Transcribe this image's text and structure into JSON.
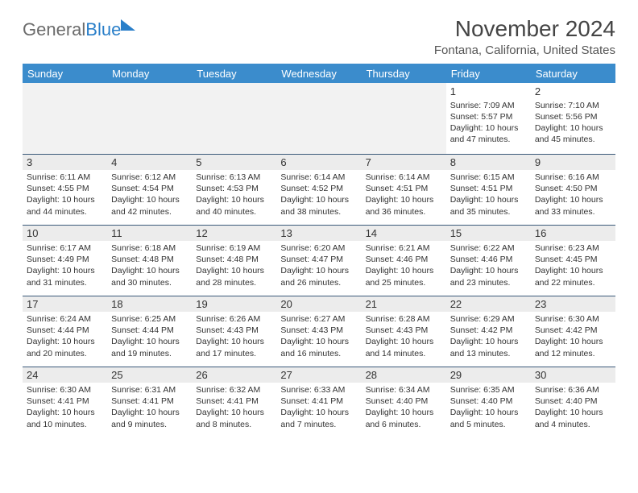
{
  "logo": {
    "part1": "General",
    "part2": "Blue"
  },
  "title": "November 2024",
  "location": "Fontana, California, United States",
  "headers": [
    "Sunday",
    "Monday",
    "Tuesday",
    "Wednesday",
    "Thursday",
    "Friday",
    "Saturday"
  ],
  "colors": {
    "header_bg": "#3b8ccc",
    "header_text": "#ffffff",
    "row_border": "#3b5a7a",
    "daynum_bg": "#ececec",
    "logo_gray": "#6b6b6b",
    "logo_blue": "#2a7fc9"
  },
  "weeks": [
    [
      {
        "day": "",
        "lines": [
          "",
          "",
          "",
          ""
        ]
      },
      {
        "day": "",
        "lines": [
          "",
          "",
          "",
          ""
        ]
      },
      {
        "day": "",
        "lines": [
          "",
          "",
          "",
          ""
        ]
      },
      {
        "day": "",
        "lines": [
          "",
          "",
          "",
          ""
        ]
      },
      {
        "day": "",
        "lines": [
          "",
          "",
          "",
          ""
        ]
      },
      {
        "day": "1",
        "lines": [
          "Sunrise: 7:09 AM",
          "Sunset: 5:57 PM",
          "Daylight: 10 hours",
          "and 47 minutes."
        ]
      },
      {
        "day": "2",
        "lines": [
          "Sunrise: 7:10 AM",
          "Sunset: 5:56 PM",
          "Daylight: 10 hours",
          "and 45 minutes."
        ]
      }
    ],
    [
      {
        "day": "3",
        "lines": [
          "Sunrise: 6:11 AM",
          "Sunset: 4:55 PM",
          "Daylight: 10 hours",
          "and 44 minutes."
        ]
      },
      {
        "day": "4",
        "lines": [
          "Sunrise: 6:12 AM",
          "Sunset: 4:54 PM",
          "Daylight: 10 hours",
          "and 42 minutes."
        ]
      },
      {
        "day": "5",
        "lines": [
          "Sunrise: 6:13 AM",
          "Sunset: 4:53 PM",
          "Daylight: 10 hours",
          "and 40 minutes."
        ]
      },
      {
        "day": "6",
        "lines": [
          "Sunrise: 6:14 AM",
          "Sunset: 4:52 PM",
          "Daylight: 10 hours",
          "and 38 minutes."
        ]
      },
      {
        "day": "7",
        "lines": [
          "Sunrise: 6:14 AM",
          "Sunset: 4:51 PM",
          "Daylight: 10 hours",
          "and 36 minutes."
        ]
      },
      {
        "day": "8",
        "lines": [
          "Sunrise: 6:15 AM",
          "Sunset: 4:51 PM",
          "Daylight: 10 hours",
          "and 35 minutes."
        ]
      },
      {
        "day": "9",
        "lines": [
          "Sunrise: 6:16 AM",
          "Sunset: 4:50 PM",
          "Daylight: 10 hours",
          "and 33 minutes."
        ]
      }
    ],
    [
      {
        "day": "10",
        "lines": [
          "Sunrise: 6:17 AM",
          "Sunset: 4:49 PM",
          "Daylight: 10 hours",
          "and 31 minutes."
        ]
      },
      {
        "day": "11",
        "lines": [
          "Sunrise: 6:18 AM",
          "Sunset: 4:48 PM",
          "Daylight: 10 hours",
          "and 30 minutes."
        ]
      },
      {
        "day": "12",
        "lines": [
          "Sunrise: 6:19 AM",
          "Sunset: 4:48 PM",
          "Daylight: 10 hours",
          "and 28 minutes."
        ]
      },
      {
        "day": "13",
        "lines": [
          "Sunrise: 6:20 AM",
          "Sunset: 4:47 PM",
          "Daylight: 10 hours",
          "and 26 minutes."
        ]
      },
      {
        "day": "14",
        "lines": [
          "Sunrise: 6:21 AM",
          "Sunset: 4:46 PM",
          "Daylight: 10 hours",
          "and 25 minutes."
        ]
      },
      {
        "day": "15",
        "lines": [
          "Sunrise: 6:22 AM",
          "Sunset: 4:46 PM",
          "Daylight: 10 hours",
          "and 23 minutes."
        ]
      },
      {
        "day": "16",
        "lines": [
          "Sunrise: 6:23 AM",
          "Sunset: 4:45 PM",
          "Daylight: 10 hours",
          "and 22 minutes."
        ]
      }
    ],
    [
      {
        "day": "17",
        "lines": [
          "Sunrise: 6:24 AM",
          "Sunset: 4:44 PM",
          "Daylight: 10 hours",
          "and 20 minutes."
        ]
      },
      {
        "day": "18",
        "lines": [
          "Sunrise: 6:25 AM",
          "Sunset: 4:44 PM",
          "Daylight: 10 hours",
          "and 19 minutes."
        ]
      },
      {
        "day": "19",
        "lines": [
          "Sunrise: 6:26 AM",
          "Sunset: 4:43 PM",
          "Daylight: 10 hours",
          "and 17 minutes."
        ]
      },
      {
        "day": "20",
        "lines": [
          "Sunrise: 6:27 AM",
          "Sunset: 4:43 PM",
          "Daylight: 10 hours",
          "and 16 minutes."
        ]
      },
      {
        "day": "21",
        "lines": [
          "Sunrise: 6:28 AM",
          "Sunset: 4:43 PM",
          "Daylight: 10 hours",
          "and 14 minutes."
        ]
      },
      {
        "day": "22",
        "lines": [
          "Sunrise: 6:29 AM",
          "Sunset: 4:42 PM",
          "Daylight: 10 hours",
          "and 13 minutes."
        ]
      },
      {
        "day": "23",
        "lines": [
          "Sunrise: 6:30 AM",
          "Sunset: 4:42 PM",
          "Daylight: 10 hours",
          "and 12 minutes."
        ]
      }
    ],
    [
      {
        "day": "24",
        "lines": [
          "Sunrise: 6:30 AM",
          "Sunset: 4:41 PM",
          "Daylight: 10 hours",
          "and 10 minutes."
        ]
      },
      {
        "day": "25",
        "lines": [
          "Sunrise: 6:31 AM",
          "Sunset: 4:41 PM",
          "Daylight: 10 hours",
          "and 9 minutes."
        ]
      },
      {
        "day": "26",
        "lines": [
          "Sunrise: 6:32 AM",
          "Sunset: 4:41 PM",
          "Daylight: 10 hours",
          "and 8 minutes."
        ]
      },
      {
        "day": "27",
        "lines": [
          "Sunrise: 6:33 AM",
          "Sunset: 4:41 PM",
          "Daylight: 10 hours",
          "and 7 minutes."
        ]
      },
      {
        "day": "28",
        "lines": [
          "Sunrise: 6:34 AM",
          "Sunset: 4:40 PM",
          "Daylight: 10 hours",
          "and 6 minutes."
        ]
      },
      {
        "day": "29",
        "lines": [
          "Sunrise: 6:35 AM",
          "Sunset: 4:40 PM",
          "Daylight: 10 hours",
          "and 5 minutes."
        ]
      },
      {
        "day": "30",
        "lines": [
          "Sunrise: 6:36 AM",
          "Sunset: 4:40 PM",
          "Daylight: 10 hours",
          "and 4 minutes."
        ]
      }
    ]
  ]
}
